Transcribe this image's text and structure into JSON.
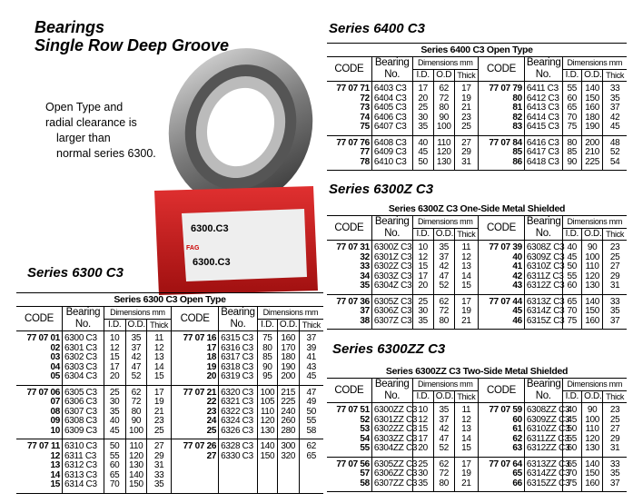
{
  "header": {
    "line1": "Bearings",
    "line2": "Single Row Deep Groove"
  },
  "note": {
    "lines": [
      "Open Type and",
      "radial clearance is",
      "larger than",
      "normal series 6300."
    ]
  },
  "image": {
    "box_label": "6300.C3",
    "brand": "FAG"
  },
  "columns": {
    "code": "CODE",
    "bearing_1": "Bearing",
    "bearing_2": "No.",
    "dims": "Dimensions mm",
    "id": "I.D.",
    "od": "O.D.",
    "thick": "Thick",
    "od_alt": "O.D"
  },
  "tables": [
    {
      "series": "Series 6300 C3",
      "title": "Series 6300 C3 Open Type",
      "groups": [
        {
          "left": [
            [
              "77 07 01",
              "6300 C3",
              "10",
              "35",
              "11"
            ],
            [
              "02",
              "6301 C3",
              "12",
              "37",
              "12"
            ],
            [
              "03",
              "6302 C3",
              "15",
              "42",
              "13"
            ],
            [
              "04",
              "6303 C3",
              "17",
              "47",
              "14"
            ],
            [
              "05",
              "6304 C3",
              "20",
              "52",
              "15"
            ]
          ],
          "right": [
            [
              "77 07 16",
              "6315 C3",
              "75",
              "160",
              "37"
            ],
            [
              "17",
              "6316 C3",
              "80",
              "170",
              "39"
            ],
            [
              "18",
              "6317 C3",
              "85",
              "180",
              "41"
            ],
            [
              "19",
              "6318 C3",
              "90",
              "190",
              "43"
            ],
            [
              "20",
              "6319 C3",
              "95",
              "200",
              "45"
            ]
          ]
        },
        {
          "left": [
            [
              "77 07 06",
              "6305 C3",
              "25",
              "62",
              "17"
            ],
            [
              "07",
              "6306 C3",
              "30",
              "72",
              "19"
            ],
            [
              "08",
              "6307 C3",
              "35",
              "80",
              "21"
            ],
            [
              "09",
              "6308 C3",
              "40",
              "90",
              "23"
            ],
            [
              "10",
              "6309 C3",
              "45",
              "100",
              "25"
            ]
          ],
          "right": [
            [
              "77 07 21",
              "6320 C3",
              "100",
              "215",
              "47"
            ],
            [
              "22",
              "6321 C3",
              "105",
              "225",
              "49"
            ],
            [
              "23",
              "6322 C3",
              "110",
              "240",
              "50"
            ],
            [
              "24",
              "6324 C3",
              "120",
              "260",
              "55"
            ],
            [
              "25",
              "6326 C3",
              "130",
              "280",
              "58"
            ]
          ]
        },
        {
          "left": [
            [
              "77 07 11",
              "6310 C3",
              "50",
              "110",
              "27"
            ],
            [
              "12",
              "6311 C3",
              "55",
              "120",
              "29"
            ],
            [
              "13",
              "6312 C3",
              "60",
              "130",
              "31"
            ],
            [
              "14",
              "6313 C3",
              "65",
              "140",
              "33"
            ],
            [
              "15",
              "6314 C3",
              "70",
              "150",
              "35"
            ]
          ],
          "right": [
            [
              "77 07 26",
              "6328 C3",
              "140",
              "300",
              "62"
            ],
            [
              "27",
              "6330 C3",
              "150",
              "320",
              "65"
            ]
          ]
        }
      ]
    },
    {
      "series": "Series 6400 C3",
      "title": "Series 6400 C3 Open Type",
      "groups": [
        {
          "left": [
            [
              "77 07 71",
              "6403 C3",
              "17",
              "62",
              "17"
            ],
            [
              "72",
              "6404 C3",
              "20",
              "72",
              "19"
            ],
            [
              "73",
              "6405 C3",
              "25",
              "80",
              "21"
            ],
            [
              "74",
              "6406 C3",
              "30",
              "90",
              "23"
            ],
            [
              "75",
              "6407 C3",
              "35",
              "100",
              "25"
            ]
          ],
          "right": [
            [
              "77 07 79",
              "6411 C3",
              "55",
              "140",
              "33"
            ],
            [
              "80",
              "6412 C3",
              "60",
              "150",
              "35"
            ],
            [
              "81",
              "6413 C3",
              "65",
              "160",
              "37"
            ],
            [
              "82",
              "6414 C3",
              "70",
              "180",
              "42"
            ],
            [
              "83",
              "6415 C3",
              "75",
              "190",
              "45"
            ]
          ]
        },
        {
          "left": [
            [
              "77 07 76",
              "6408 C3",
              "40",
              "110",
              "27"
            ],
            [
              "77",
              "6409 C3",
              "45",
              "120",
              "29"
            ],
            [
              "78",
              "6410 C3",
              "50",
              "130",
              "31"
            ]
          ],
          "right": [
            [
              "77 07 84",
              "6416 C3",
              "80",
              "200",
              "48"
            ],
            [
              "85",
              "6417 C3",
              "85",
              "210",
              "52"
            ],
            [
              "86",
              "6418 C3",
              "90",
              "225",
              "54"
            ]
          ]
        }
      ]
    },
    {
      "series": "Series 6300Z C3",
      "title": "Series 6300Z C3 One-Side Metal Shielded",
      "groups": [
        {
          "left": [
            [
              "77 07 31",
              "6300Z C3",
              "10",
              "35",
              "11"
            ],
            [
              "32",
              "6301Z C3",
              "12",
              "37",
              "12"
            ],
            [
              "33",
              "6302Z C3",
              "15",
              "42",
              "13"
            ],
            [
              "34",
              "6303Z C3",
              "17",
              "47",
              "14"
            ],
            [
              "35",
              "6304Z C3",
              "20",
              "52",
              "15"
            ]
          ],
          "right": [
            [
              "77 07 39",
              "6308Z C3",
              "40",
              "90",
              "23"
            ],
            [
              "40",
              "6309Z C3",
              "45",
              "100",
              "25"
            ],
            [
              "41",
              "6310Z C3",
              "50",
              "110",
              "27"
            ],
            [
              "42",
              "6311Z C3",
              "55",
              "120",
              "29"
            ],
            [
              "43",
              "6312Z C3",
              "60",
              "130",
              "31"
            ]
          ]
        },
        {
          "left": [
            [
              "77 07 36",
              "6305Z C3",
              "25",
              "62",
              "17"
            ],
            [
              "37",
              "6306Z C3",
              "30",
              "72",
              "19"
            ],
            [
              "38",
              "6307Z C3",
              "35",
              "80",
              "21"
            ]
          ],
          "right": [
            [
              "77 07 44",
              "6313Z C3",
              "65",
              "140",
              "33"
            ],
            [
              "45",
              "6314Z C3",
              "70",
              "150",
              "35"
            ],
            [
              "46",
              "6315Z C3",
              "75",
              "160",
              "37"
            ]
          ]
        }
      ]
    },
    {
      "series": "Series 6300ZZ C3",
      "title": "Series 6300ZZ C3 Two-Side Metal Shielded",
      "groups": [
        {
          "left": [
            [
              "77 07 51",
              "6300ZZ C3",
              "10",
              "35",
              "11"
            ],
            [
              "52",
              "6301ZZ C3",
              "12",
              "37",
              "12"
            ],
            [
              "53",
              "6302ZZ C3",
              "15",
              "42",
              "13"
            ],
            [
              "54",
              "6303ZZ C3",
              "17",
              "47",
              "14"
            ],
            [
              "55",
              "6304ZZ C3",
              "20",
              "52",
              "15"
            ]
          ],
          "right": [
            [
              "77 07 59",
              "6308ZZ C3",
              "40",
              "90",
              "23"
            ],
            [
              "60",
              "6309ZZ C3",
              "45",
              "100",
              "25"
            ],
            [
              "61",
              "6310ZZ C3",
              "50",
              "110",
              "27"
            ],
            [
              "62",
              "6311ZZ C3",
              "55",
              "120",
              "29"
            ],
            [
              "63",
              "6312ZZ C3",
              "60",
              "130",
              "31"
            ]
          ]
        },
        {
          "left": [
            [
              "77 07 56",
              "6305ZZ C3",
              "25",
              "62",
              "17"
            ],
            [
              "57",
              "6306ZZ C3",
              "30",
              "72",
              "19"
            ],
            [
              "58",
              "6307ZZ C3",
              "35",
              "80",
              "21"
            ]
          ],
          "right": [
            [
              "77 07 64",
              "6313ZZ C3",
              "65",
              "140",
              "33"
            ],
            [
              "65",
              "6314ZZ C3",
              "70",
              "150",
              "35"
            ],
            [
              "66",
              "6315ZZ C3",
              "75",
              "160",
              "37"
            ]
          ]
        }
      ]
    }
  ]
}
